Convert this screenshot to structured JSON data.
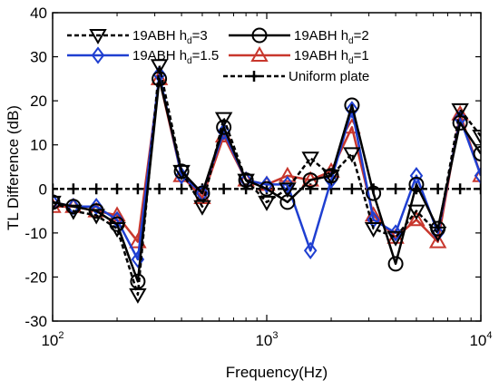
{
  "chart_data": {
    "type": "line",
    "title": "",
    "xlabel": "Frequency(Hz)",
    "ylabel": "TL Difference (dB)",
    "xscale": "log",
    "xlim": [
      100,
      10000
    ],
    "ylim": [
      -30,
      40
    ],
    "xticks": [
      {
        "value": 100,
        "base": "10",
        "exp": "2"
      },
      {
        "value": 1000,
        "base": "10",
        "exp": "3"
      },
      {
        "value": 10000,
        "base": "10",
        "exp": "4"
      }
    ],
    "yticks": [
      -30,
      -20,
      -10,
      0,
      10,
      20,
      30,
      40
    ],
    "grid": false,
    "legend_position": "top",
    "x": [
      100,
      125,
      160,
      200,
      250,
      315,
      400,
      500,
      630,
      800,
      1000,
      1250,
      1600,
      2000,
      2500,
      3150,
      4000,
      5000,
      6300,
      8000,
      10000
    ],
    "series": [
      {
        "name_main": "19ABH h",
        "name_sub": "d",
        "name_tail": "=3",
        "color": "#000000",
        "line": "dashed",
        "marker": "triangle-down",
        "values": [
          -3,
          -5,
          -6,
          -9,
          -24,
          28,
          4,
          -4,
          16,
          2,
          -3,
          0,
          7,
          3,
          8,
          -9,
          -11,
          -5,
          -10,
          18,
          12
        ]
      },
      {
        "name_main": "19ABH h",
        "name_sub": "d",
        "name_tail": "=2",
        "color": "#000000",
        "line": "solid",
        "marker": "circle",
        "values": [
          -3,
          -4,
          -5,
          -8,
          -21,
          25,
          4,
          -1,
          14,
          2,
          0,
          -3,
          2,
          3,
          19,
          -1,
          -17,
          1,
          -9,
          15,
          8
        ]
      },
      {
        "name_main": "19ABH h",
        "name_sub": "d",
        "name_tail": "=1.5",
        "color": "#1f3fd1",
        "line": "solid",
        "marker": "diamond",
        "values": [
          -3,
          -4,
          -4,
          -7,
          -16,
          26,
          3,
          -1,
          13,
          2,
          1,
          1,
          -14,
          2,
          18,
          -7,
          -10,
          3,
          -10,
          16,
          3
        ]
      },
      {
        "name_main": "19ABH h",
        "name_sub": "d",
        "name_tail": "=1",
        "color": "#c8372d",
        "line": "solid",
        "marker": "triangle-up",
        "values": [
          -4,
          -4,
          -5,
          -6,
          -12,
          25,
          3,
          -2,
          12,
          2,
          1,
          3,
          2,
          4,
          14,
          -6,
          -11,
          -7,
          -12,
          17,
          3
        ]
      },
      {
        "name_main": "Uniform plate",
        "name_sub": "",
        "name_tail": "",
        "color": "#000000",
        "line": "dashed",
        "marker": "plus",
        "values": [
          0,
          0,
          0,
          0,
          0,
          0,
          0,
          0,
          0,
          0,
          0,
          0,
          0,
          0,
          0,
          0,
          0,
          0,
          0,
          0,
          0
        ]
      }
    ]
  }
}
